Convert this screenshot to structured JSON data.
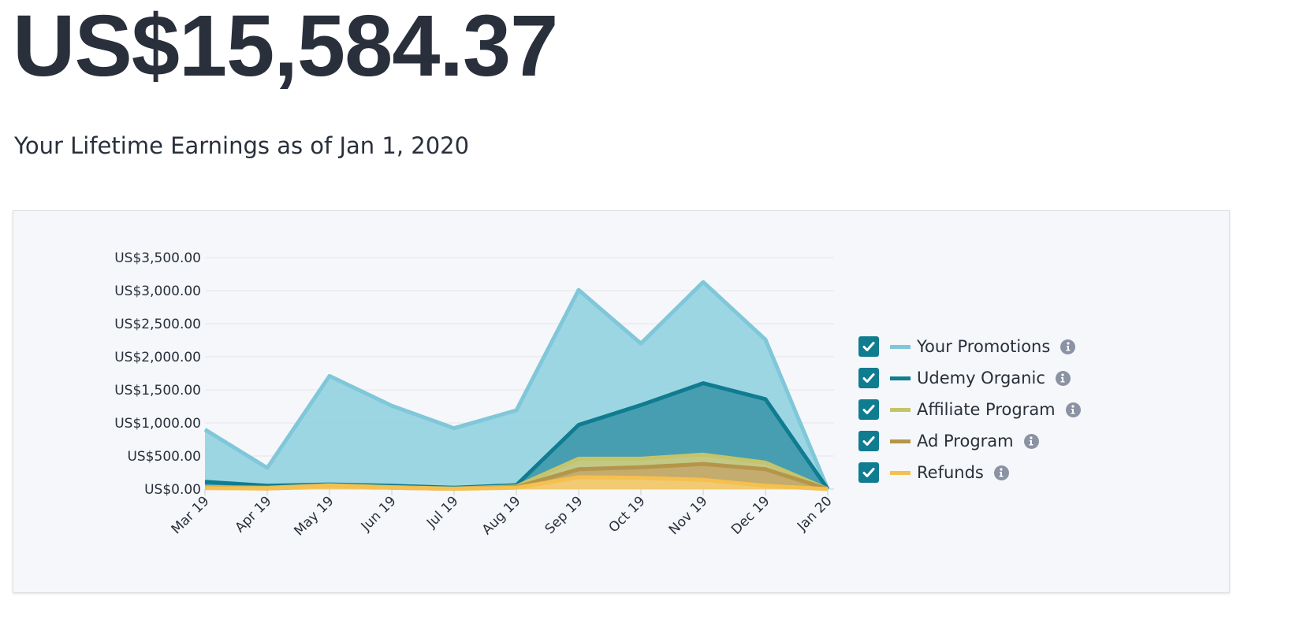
{
  "header": {
    "total_earnings": "US$15,584.37",
    "subtitle": "Your Lifetime Earnings as of Jan 1, 2020"
  },
  "chart_data": {
    "type": "area",
    "title": "",
    "xlabel": "",
    "ylabel": "",
    "ylim": [
      0,
      3500
    ],
    "y_ticks": [
      0,
      500,
      1000,
      1500,
      2000,
      2500,
      3000,
      3500
    ],
    "y_tick_labels": [
      "US$0.00",
      "US$500.00",
      "US$1,000.00",
      "US$1,500.00",
      "US$2,000.00",
      "US$2,500.00",
      "US$3,000.00",
      "US$3,500.00"
    ],
    "categories": [
      "Mar 19",
      "Apr 19",
      "May 19",
      "Jun 19",
      "Jul 19",
      "Aug 19",
      "Sep 19",
      "Oct 19",
      "Nov 19",
      "Dec 19",
      "Jan 20"
    ],
    "series": [
      {
        "name": "Your Promotions",
        "color": "#7fc7d9",
        "fill": "#93d1e0",
        "values": [
          900,
          320,
          1710,
          1260,
          920,
          1190,
          3010,
          2200,
          3130,
          2260,
          0
        ]
      },
      {
        "name": "Udemy Organic",
        "color": "#0f7c90",
        "fill": "#3f98ab",
        "values": [
          110,
          50,
          70,
          50,
          20,
          60,
          970,
          1270,
          1600,
          1360,
          0
        ]
      },
      {
        "name": "Affiliate Program",
        "color": "#c5c46a",
        "fill": "#cfcd82",
        "values": [
          30,
          20,
          60,
          30,
          10,
          40,
          460,
          460,
          520,
          400,
          0
        ]
      },
      {
        "name": "Ad Program",
        "color": "#b5954a",
        "fill": "#c3a86a",
        "values": [
          20,
          10,
          40,
          20,
          5,
          30,
          300,
          330,
          380,
          300,
          0
        ]
      },
      {
        "name": "Refunds",
        "color": "#f5c04f",
        "fill": "#f6cd73",
        "values": [
          15,
          10,
          50,
          20,
          5,
          20,
          180,
          170,
          140,
          50,
          0
        ]
      }
    ]
  },
  "legend": {
    "items": [
      {
        "label": "Your Promotions",
        "checked": true
      },
      {
        "label": "Udemy Organic",
        "checked": true
      },
      {
        "label": "Affiliate Program",
        "checked": true
      },
      {
        "label": "Ad Program",
        "checked": true
      },
      {
        "label": "Refunds",
        "checked": true
      }
    ]
  }
}
